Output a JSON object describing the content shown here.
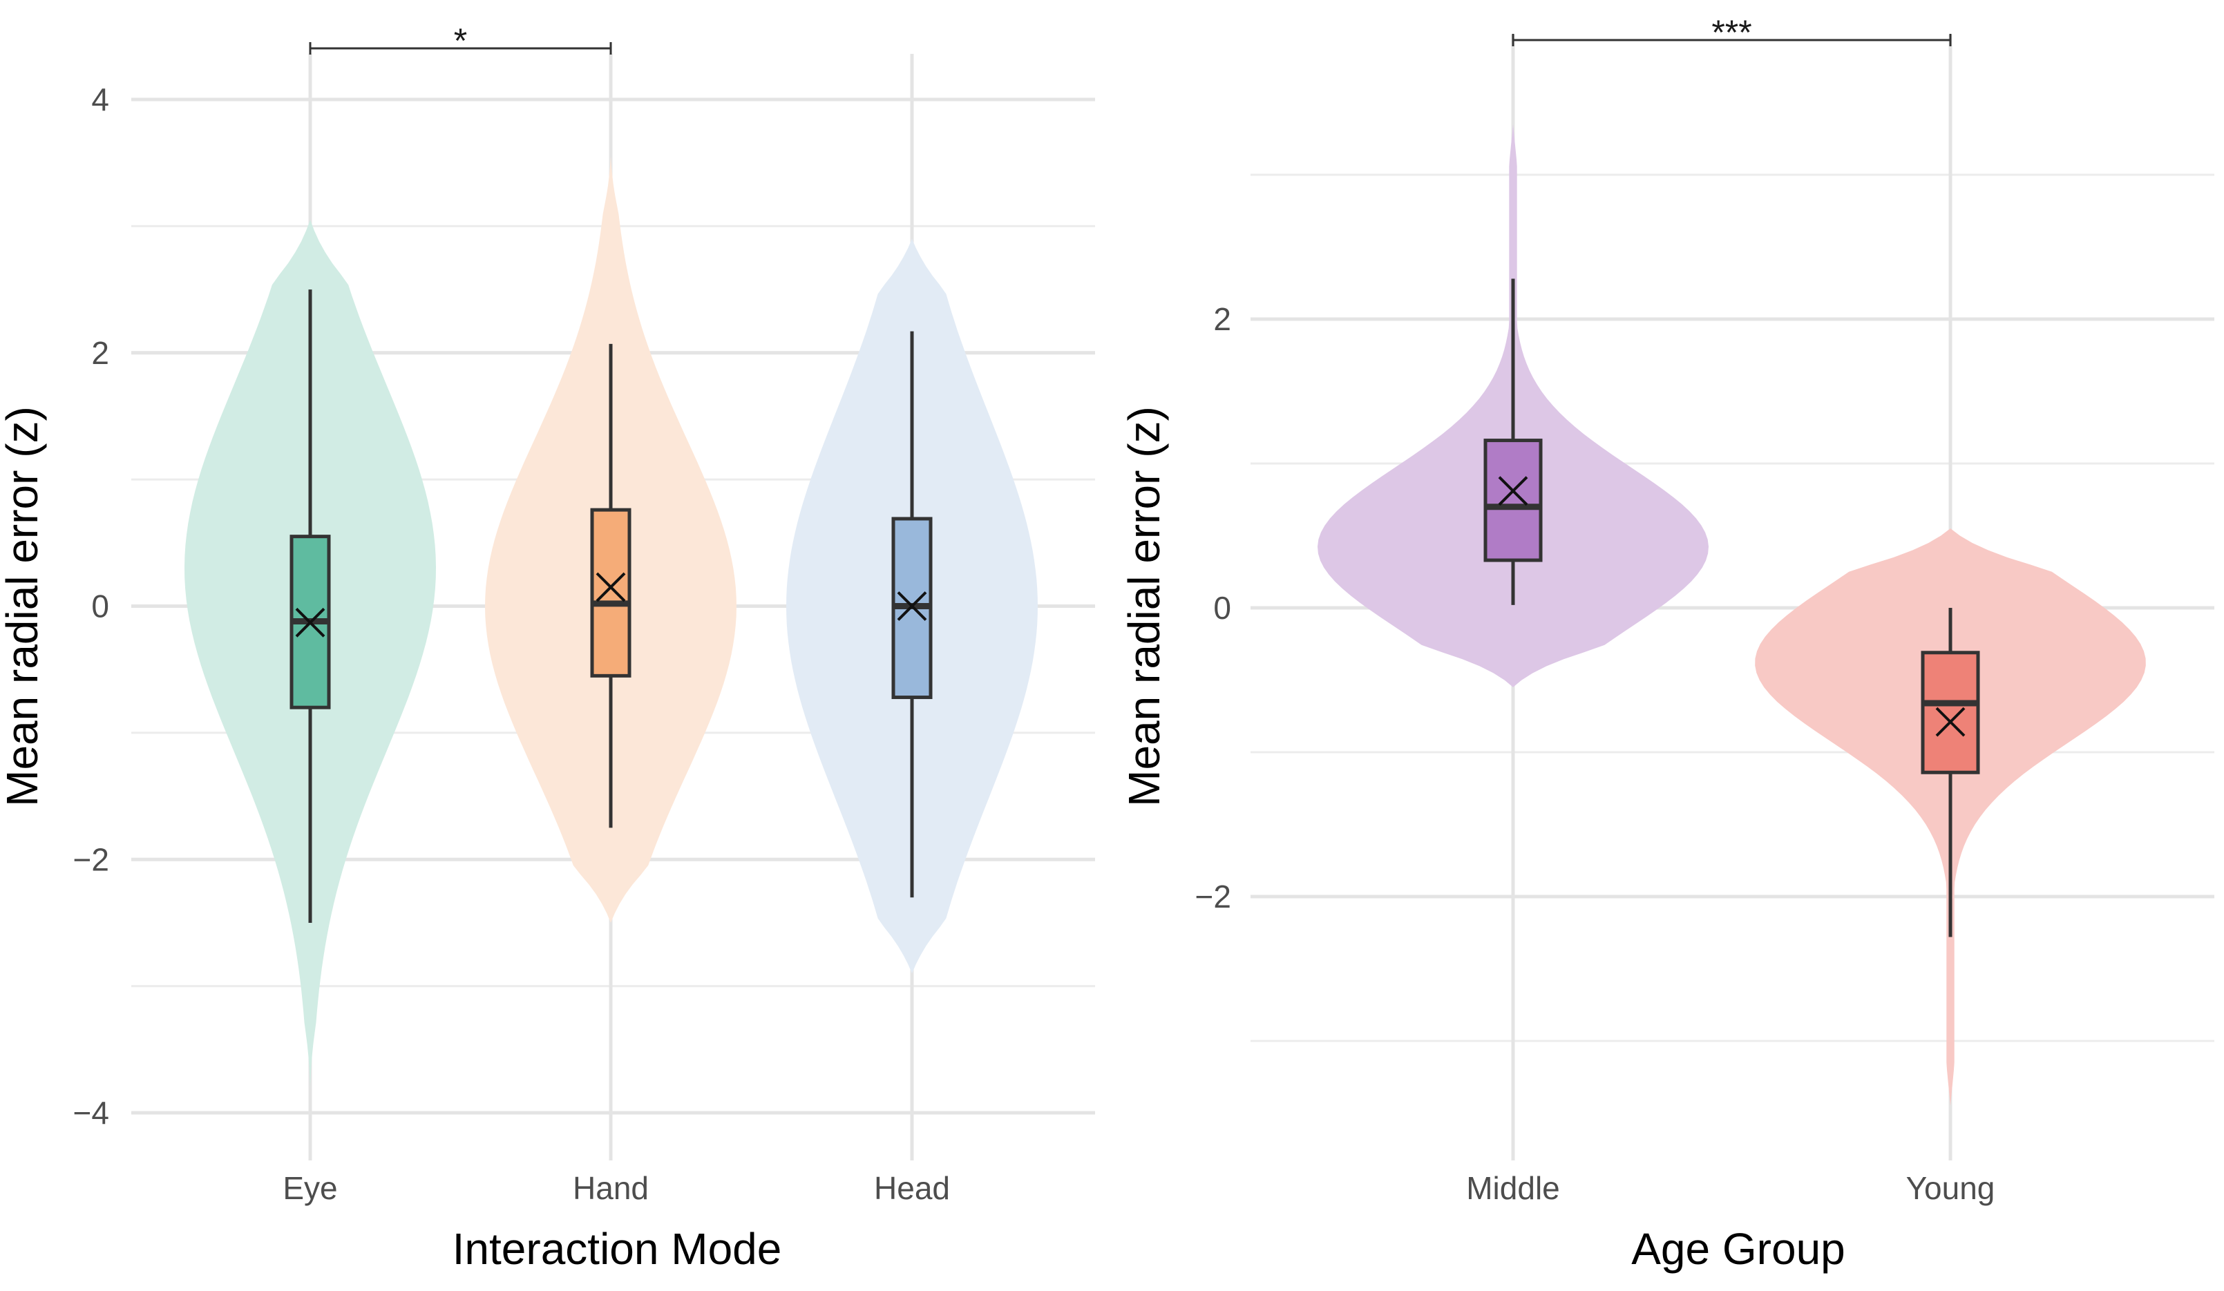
{
  "chart_data": [
    {
      "type": "violin",
      "xlabel": "Interaction Mode",
      "ylabel": "Mean radial error (z)",
      "ylim": [
        -4.3,
        4.3
      ],
      "yticks": [
        {
          "value": 4,
          "label": "4"
        },
        {
          "value": 2,
          "label": "2"
        },
        {
          "value": 0,
          "label": "0"
        },
        {
          "value": -2,
          "label": "−2"
        },
        {
          "value": -4,
          "label": "−4"
        }
      ],
      "minor_gridlines": [
        3,
        1,
        -1,
        -3
      ],
      "grid": true,
      "categories": [
        "Eye",
        "Hand",
        "Head"
      ],
      "series": [
        {
          "category": "Eye",
          "fill": "#1b9e77",
          "violin_opacity": 0.2,
          "violin_range": [
            -3.8,
            3.05
          ],
          "violin_peak": 0.3,
          "whisker_low": -2.5,
          "q1": -0.8,
          "median": -0.12,
          "q3": 0.55,
          "whisker_high": 2.5,
          "mean": -0.13
        },
        {
          "category": "Hand",
          "fill": "#f0883e",
          "violin_opacity": 0.2,
          "violin_range": [
            -2.5,
            3.55
          ],
          "violin_peak": 0.0,
          "whisker_low": -1.75,
          "q1": -0.55,
          "median": 0.02,
          "q3": 0.76,
          "whisker_high": 2.07,
          "mean": 0.15
        },
        {
          "category": "Head",
          "fill": "#6d9acc",
          "violin_opacity": 0.2,
          "violin_range": [
            -2.9,
            2.9
          ],
          "violin_peak": 0.0,
          "whisker_low": -2.3,
          "q1": -0.72,
          "median": 0.0,
          "q3": 0.69,
          "whisker_high": 2.17,
          "mean": 0.0
        }
      ],
      "significance": {
        "from": "Eye",
        "to": "Hand",
        "label": "*"
      }
    },
    {
      "type": "violin",
      "xlabel": "Age Group",
      "ylabel": "Mean radial error (z)",
      "ylim": [
        -3.8,
        4.0
      ],
      "yticks": [
        {
          "value": 2,
          "label": "2"
        },
        {
          "value": 0,
          "label": "0"
        },
        {
          "value": -2,
          "label": "−2"
        }
      ],
      "minor_gridlines": [
        3,
        1,
        -1,
        -3
      ],
      "grid": true,
      "categories": [
        "Middle",
        "Young"
      ],
      "series": [
        {
          "category": "Middle",
          "fill": "#8e44ad",
          "violin_opacity": 0.3,
          "violin_range": [
            -0.55,
            3.35
          ],
          "violin_peak": 0.42,
          "whisker_low": 0.02,
          "q1": 0.33,
          "median": 0.7,
          "q3": 1.16,
          "whisker_high": 2.28,
          "mean": 0.81
        },
        {
          "category": "Young",
          "fill": "#e74c3c",
          "violin_opacity": 0.3,
          "violin_range": [
            -3.45,
            0.55
          ],
          "violin_peak": -0.38,
          "whisker_low": -2.28,
          "q1": -1.14,
          "median": -0.66,
          "q3": -0.31,
          "whisker_high": 0.0,
          "mean": -0.79
        }
      ],
      "significance": {
        "from": "Middle",
        "to": "Young",
        "label": "***"
      }
    }
  ]
}
